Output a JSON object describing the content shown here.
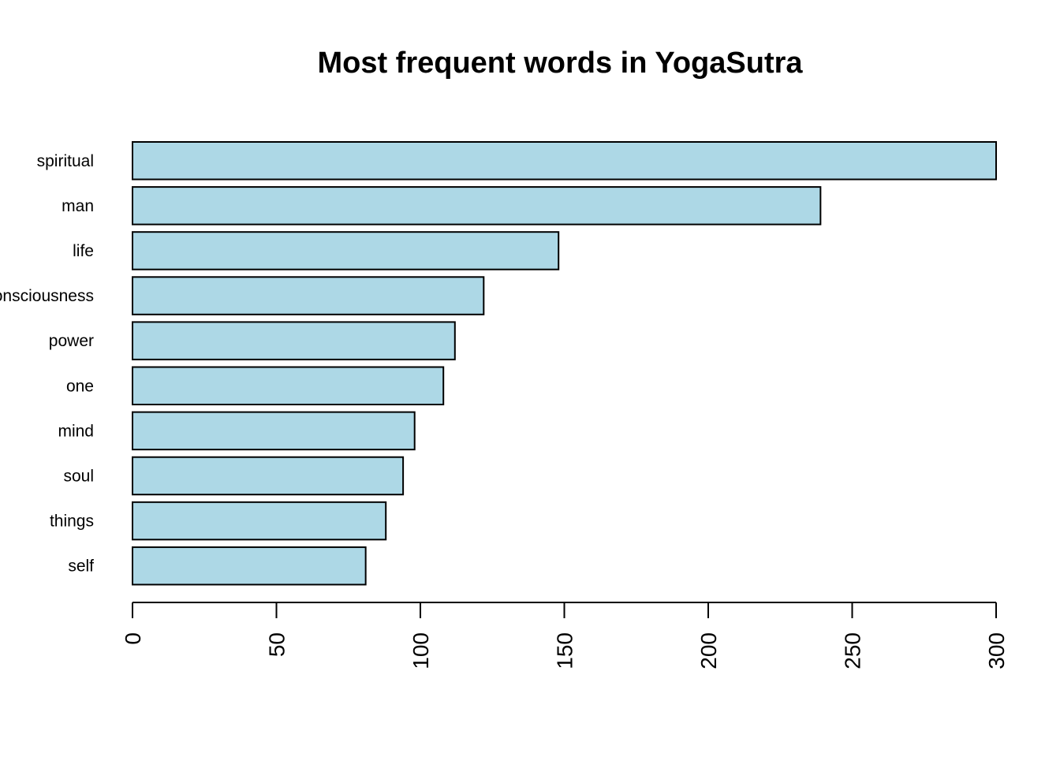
{
  "chart_data": {
    "type": "bar",
    "orientation": "horizontal",
    "title": "Most frequent words in YogaSutra",
    "xlabel": "",
    "ylabel": "",
    "categories": [
      "spiritual",
      "man",
      "life",
      "consciousness",
      "power",
      "one",
      "mind",
      "soul",
      "things",
      "self"
    ],
    "values": [
      300,
      239,
      148,
      122,
      112,
      108,
      98,
      94,
      88,
      81
    ],
    "xlim": [
      0,
      300
    ],
    "xticks": [
      0,
      50,
      100,
      150,
      200,
      250,
      300
    ],
    "tick_label_orientation": "vertical",
    "bar_color": "#add8e6",
    "border_color": "#000000",
    "grid": false,
    "legend": "none"
  }
}
